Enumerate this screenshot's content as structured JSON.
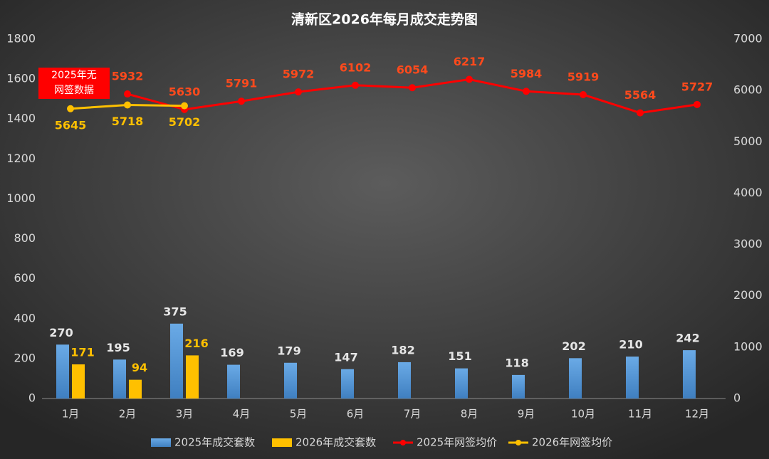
{
  "chart_data": {
    "type": "bar_line",
    "title": "清新区2026年每月成交走势图",
    "annotation": [
      "2025年无",
      "网签数据"
    ],
    "categories": [
      "1月",
      "2月",
      "3月",
      "4月",
      "5月",
      "6月",
      "7月",
      "8月",
      "9月",
      "10月",
      "11月",
      "12月"
    ],
    "series": [
      {
        "name": "2025年成交套数",
        "type": "bar",
        "color": "#5b9bd5",
        "label_color": "#e6e6e6",
        "values": [
          270,
          195,
          375,
          169,
          179,
          147,
          182,
          151,
          118,
          202,
          210,
          242
        ]
      },
      {
        "name": "2026年成交套数",
        "type": "bar",
        "color": "#ffc000",
        "label_color": "#ffc000",
        "values": [
          171,
          94,
          216,
          null,
          null,
          null,
          null,
          null,
          null,
          null,
          null,
          null
        ]
      },
      {
        "name": "2025年网签均价",
        "type": "line",
        "axis": "y2",
        "color": "#ff0000",
        "label_color": "#ff4a1c",
        "values": [
          null,
          5932,
          5630,
          5791,
          5972,
          6102,
          6054,
          6217,
          5984,
          5919,
          5564,
          5727
        ]
      },
      {
        "name": "2026年网签均价",
        "type": "line",
        "axis": "y2",
        "color": "#ffc000",
        "label_color": "#ffc000",
        "values": [
          5645,
          5718,
          5702,
          null,
          null,
          null,
          null,
          null,
          null,
          null,
          null,
          null
        ]
      }
    ],
    "ylim": [
      0,
      1800
    ],
    "yticks": [
      0,
      200,
      400,
      600,
      800,
      1000,
      1200,
      1400,
      1600,
      1800
    ],
    "y2lim": [
      0,
      7000
    ],
    "y2ticks": [
      0,
      1000,
      2000,
      3000,
      4000,
      5000,
      6000,
      7000
    ],
    "grid": false,
    "legend": "bottom"
  }
}
